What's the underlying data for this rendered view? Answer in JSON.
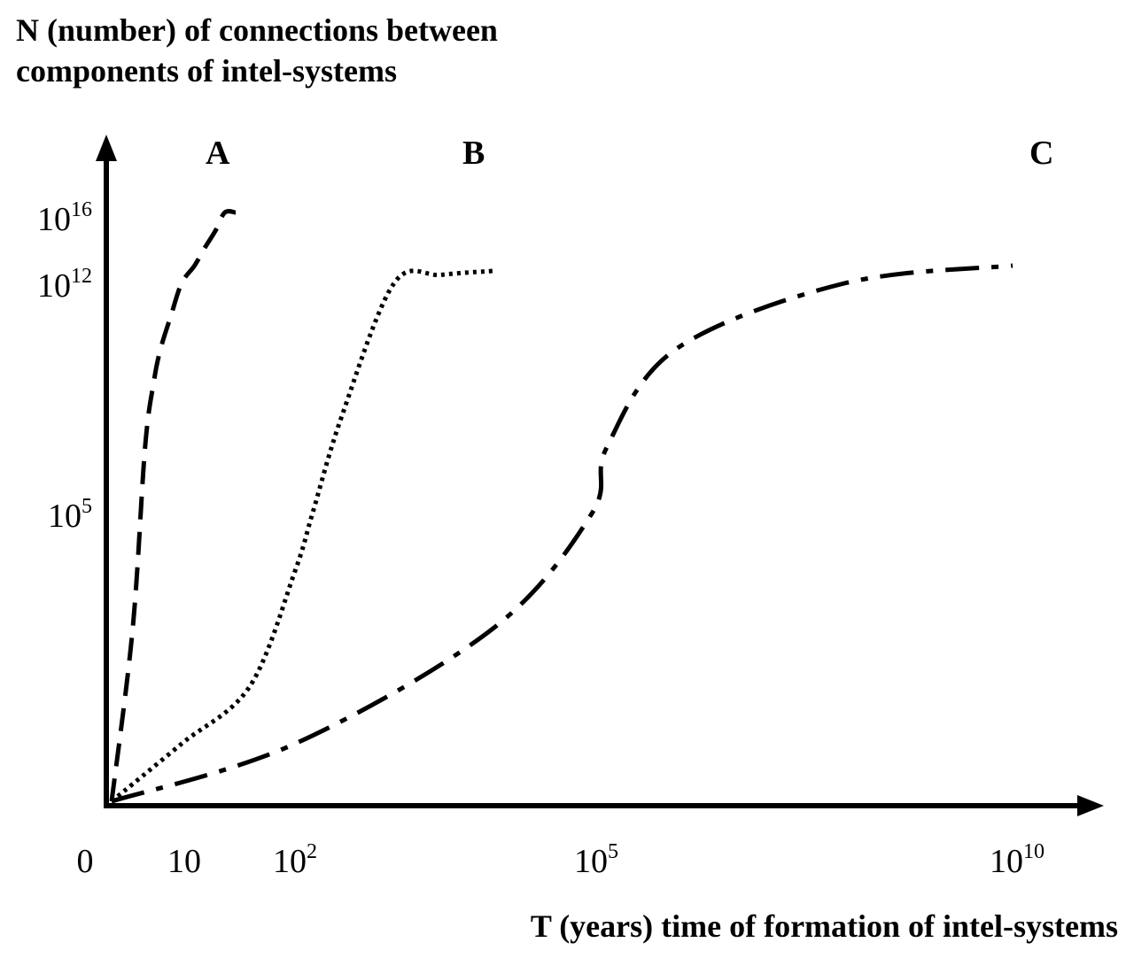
{
  "chart_data": {
    "type": "line",
    "ylabel_lines": [
      "N (number) of connections between",
      "components of intel-systems"
    ],
    "xlabel": "T (years) time of formation of intel-systems",
    "x_ticks": [
      {
        "value": 0,
        "base": "0",
        "exp": ""
      },
      {
        "value": 10,
        "base": "10",
        "exp": ""
      },
      {
        "value": 100,
        "base": "10",
        "exp": "2"
      },
      {
        "value": 100000,
        "base": "10",
        "exp": "5"
      },
      {
        "value": 10000000000,
        "base": "10",
        "exp": "10"
      }
    ],
    "y_ticks": [
      {
        "value": 100000,
        "base": "10",
        "exp": "5"
      },
      {
        "value": 1000000000000,
        "base": "10",
        "exp": "12"
      },
      {
        "value": 10000000000000000,
        "base": "10",
        "exp": "16"
      }
    ],
    "series": [
      {
        "name": "A",
        "style": "dashed",
        "x": [
          1,
          2,
          3,
          4,
          5,
          7,
          10,
          13,
          16,
          20,
          24,
          30
        ],
        "y": [
          1,
          1000,
          10000000,
          1000000000,
          10000000000,
          100000000000,
          1000000000000,
          10000000000000,
          100000000000000,
          1000000000000000,
          10000000000000000,
          10000000000000000
        ]
      },
      {
        "name": "B",
        "style": "dotted",
        "x": [
          1,
          10,
          40,
          100,
          150,
          300,
          1000,
          3000,
          10000
        ],
        "y": [
          1,
          10,
          100,
          10000,
          100000,
          100000000,
          1000000000000,
          3000000000000,
          5000000000000
        ]
      },
      {
        "name": "C",
        "style": "dash-dot",
        "x": [
          1,
          100,
          10000,
          100000,
          150000,
          1000000,
          100000000,
          10000000000
        ],
        "y": [
          1,
          10,
          1000,
          100000,
          10000000,
          10000000000,
          1000000000000,
          10000000000000
        ]
      }
    ]
  }
}
